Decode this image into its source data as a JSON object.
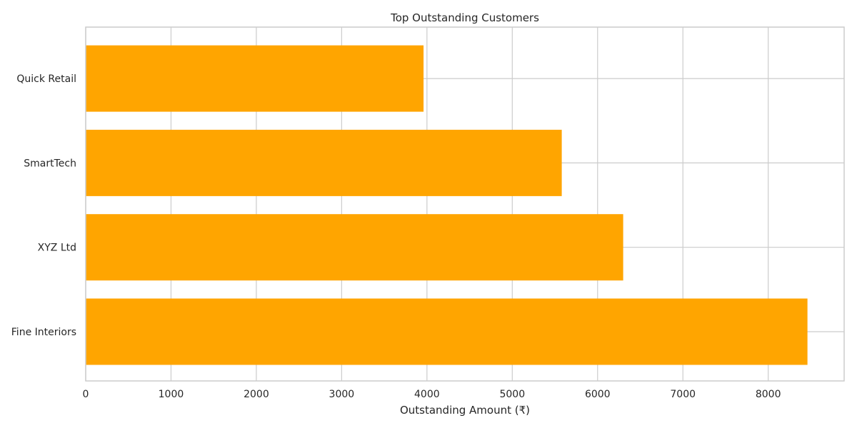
{
  "chart_data": {
    "type": "bar",
    "orientation": "horizontal",
    "title": "Top Outstanding Customers",
    "xlabel": "Outstanding Amount (₹)",
    "ylabel": "",
    "categories": [
      "Fine Interiors",
      "XYZ Ltd",
      "SmartTech",
      "Quick Retail"
    ],
    "values": [
      8460,
      6300,
      5580,
      3960
    ],
    "xlim": [
      0,
      8890
    ],
    "xticks": [
      0,
      1000,
      2000,
      3000,
      4000,
      5000,
      6000,
      7000,
      8000
    ],
    "xtick_labels": [
      "0",
      "1000",
      "2000",
      "3000",
      "4000",
      "5000",
      "6000",
      "7000",
      "8000"
    ],
    "grid": true,
    "legend": "none",
    "bar_color": "#FFA500",
    "grid_color": "#CCCCCC",
    "spine_color": "#CCCCCC"
  }
}
